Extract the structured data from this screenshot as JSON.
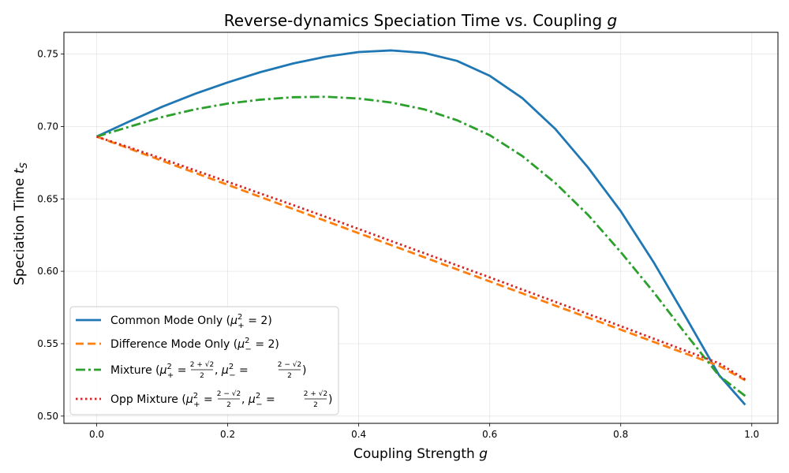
{
  "chart_data": {
    "type": "line",
    "title": "Reverse-dynamics Speciation Time vs. Coupling g",
    "title_parts": {
      "text": "Reverse-dynamics Speciation Time vs. Coupling ",
      "var": "g"
    },
    "xlabel": "Coupling Strength g",
    "xlabel_parts": {
      "text": "Coupling Strength ",
      "var": "g"
    },
    "ylabel": "Speciation Time t_S",
    "ylabel_parts": {
      "text": "Speciation Time ",
      "var": "t",
      "sub": "S"
    },
    "xlim": [
      -0.05,
      1.04
    ],
    "ylim": [
      0.495,
      0.765
    ],
    "xticks": [
      0.0,
      0.2,
      0.4,
      0.6,
      0.8,
      1.0
    ],
    "xtick_labels": [
      "0.0",
      "0.2",
      "0.4",
      "0.6",
      "0.8",
      "1.0"
    ],
    "yticks": [
      0.5,
      0.55,
      0.6,
      0.65,
      0.7,
      0.75
    ],
    "ytick_labels": [
      "0.50",
      "0.55",
      "0.60",
      "0.65",
      "0.70",
      "0.75"
    ],
    "grid": true,
    "legend_position": "lower-left",
    "x": [
      0.0,
      0.05,
      0.1,
      0.15,
      0.2,
      0.25,
      0.3,
      0.35,
      0.4,
      0.45,
      0.5,
      0.55,
      0.6,
      0.65,
      0.7,
      0.75,
      0.8,
      0.85,
      0.9,
      0.95,
      0.99
    ],
    "series": [
      {
        "name": "Common Mode Only (μ₊² = 2)",
        "style": "solid",
        "color": "#1f77b4",
        "values": [
          0.693,
          0.7035,
          0.7136,
          0.7225,
          0.7304,
          0.7375,
          0.7435,
          0.7482,
          0.7514,
          0.7525,
          0.7508,
          0.7453,
          0.735,
          0.7195,
          0.6983,
          0.6717,
          0.6415,
          0.6064,
          0.5678,
          0.5284,
          0.5078
        ]
      },
      {
        "name": "Difference Mode Only (μ₋² = 2)",
        "style": "dashed",
        "color": "#ff7f0e",
        "values": [
          0.693,
          0.6847,
          0.6763,
          0.668,
          0.6597,
          0.6513,
          0.643,
          0.6347,
          0.6263,
          0.618,
          0.6097,
          0.6013,
          0.593,
          0.5847,
          0.5763,
          0.568,
          0.5597,
          0.5513,
          0.543,
          0.5347,
          0.5247
        ]
      },
      {
        "name": "Mixture",
        "style": "dashdot",
        "color": "#2ca02c",
        "values": [
          0.693,
          0.6998,
          0.7065,
          0.7118,
          0.7158,
          0.7185,
          0.7202,
          0.7205,
          0.7193,
          0.7165,
          0.7118,
          0.7043,
          0.694,
          0.6795,
          0.661,
          0.639,
          0.6133,
          0.5857,
          0.5563,
          0.5279,
          0.5139
        ]
      },
      {
        "name": "Opp Mixture",
        "style": "dotted",
        "color": "#d62728",
        "values": [
          0.693,
          0.6855,
          0.6777,
          0.6697,
          0.6618,
          0.6537,
          0.6457,
          0.6375,
          0.6292,
          0.6208,
          0.6125,
          0.6041,
          0.5958,
          0.5873,
          0.5789,
          0.5705,
          0.5621,
          0.5535,
          0.545,
          0.5365,
          0.5253
        ]
      }
    ],
    "legend": [
      {
        "prefix": "Common Mode Only (",
        "sym": "μ",
        "sup": "2",
        "sub": "+",
        "eq": " = 2)",
        "extra": null
      },
      {
        "prefix": "Difference Mode Only (",
        "sym": "μ",
        "sup": "2",
        "sub": "−",
        "eq": " = 2)",
        "extra": null
      },
      {
        "prefix": "Mixture (",
        "sym": "μ",
        "sup": "2",
        "sub": "+",
        "eq": " = ",
        "num": "2 + √2",
        "den": "2",
        "sep": ",  ",
        "sym2": "μ",
        "sub2": "−",
        "num2": "2 − √2",
        "den2": "2",
        "suffix": ")"
      },
      {
        "prefix": "Opp Mixture (",
        "sym": "μ",
        "sup": "2",
        "sub": "+",
        "eq": " = ",
        "num": "2 − √2",
        "den": "2",
        "sep": ",  ",
        "sym2": "μ",
        "sub2": "−",
        "num2": "2 + √2",
        "den2": "2",
        "suffix": ")"
      }
    ]
  }
}
